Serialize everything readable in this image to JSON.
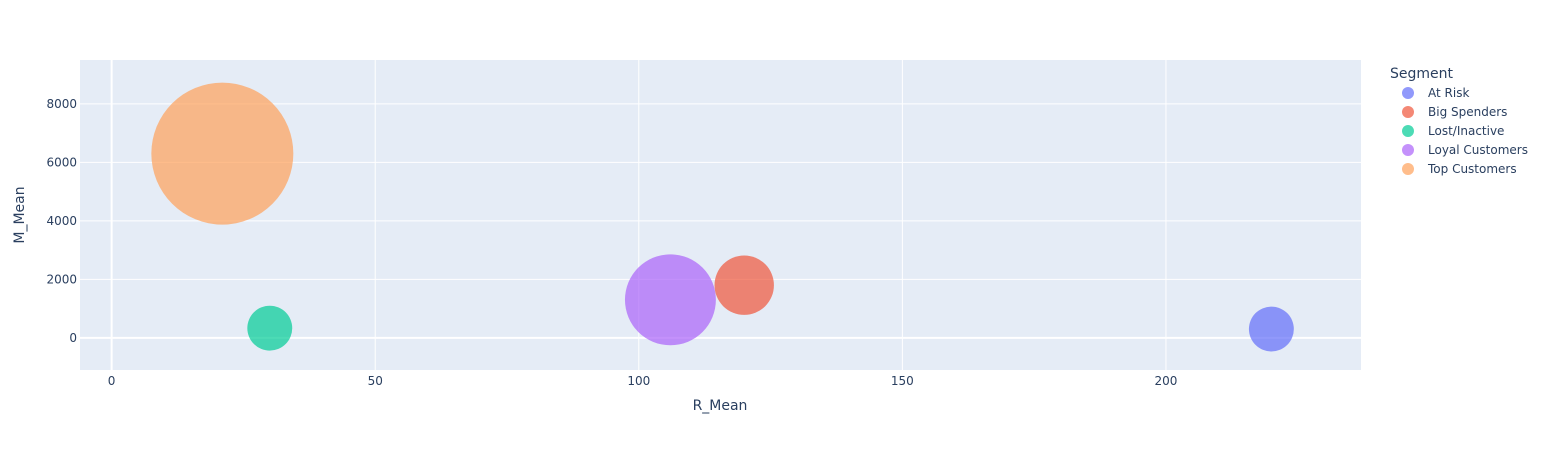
{
  "chart_data": {
    "type": "scatter",
    "subtype": "bubble",
    "xlabel": "R_Mean",
    "ylabel": "M_Mean",
    "xlim": [
      -6,
      237
    ],
    "ylim": [
      -1100,
      9500
    ],
    "xticks": [
      0,
      50,
      100,
      150,
      200
    ],
    "yticks": [
      0,
      2000,
      4000,
      6000,
      8000
    ],
    "grid": true,
    "legend": {
      "title": "Segment",
      "position": "right"
    },
    "series": [
      {
        "name": "At Risk",
        "color": "#636efa",
        "x": 220,
        "y": 300,
        "size": 1
      },
      {
        "name": "Big Spenders",
        "color": "#ef553b",
        "x": 120,
        "y": 1800,
        "size": 1.75
      },
      {
        "name": "Lost/Inactive",
        "color": "#00cc96",
        "x": 30,
        "y": 330,
        "size": 1
      },
      {
        "name": "Loyal Customers",
        "color": "#ab63fa",
        "x": 106,
        "y": 1300,
        "size": 4.1
      },
      {
        "name": "Top Customers",
        "color": "#ffa15a",
        "x": 21,
        "y": 6300,
        "size": 10
      }
    ]
  }
}
